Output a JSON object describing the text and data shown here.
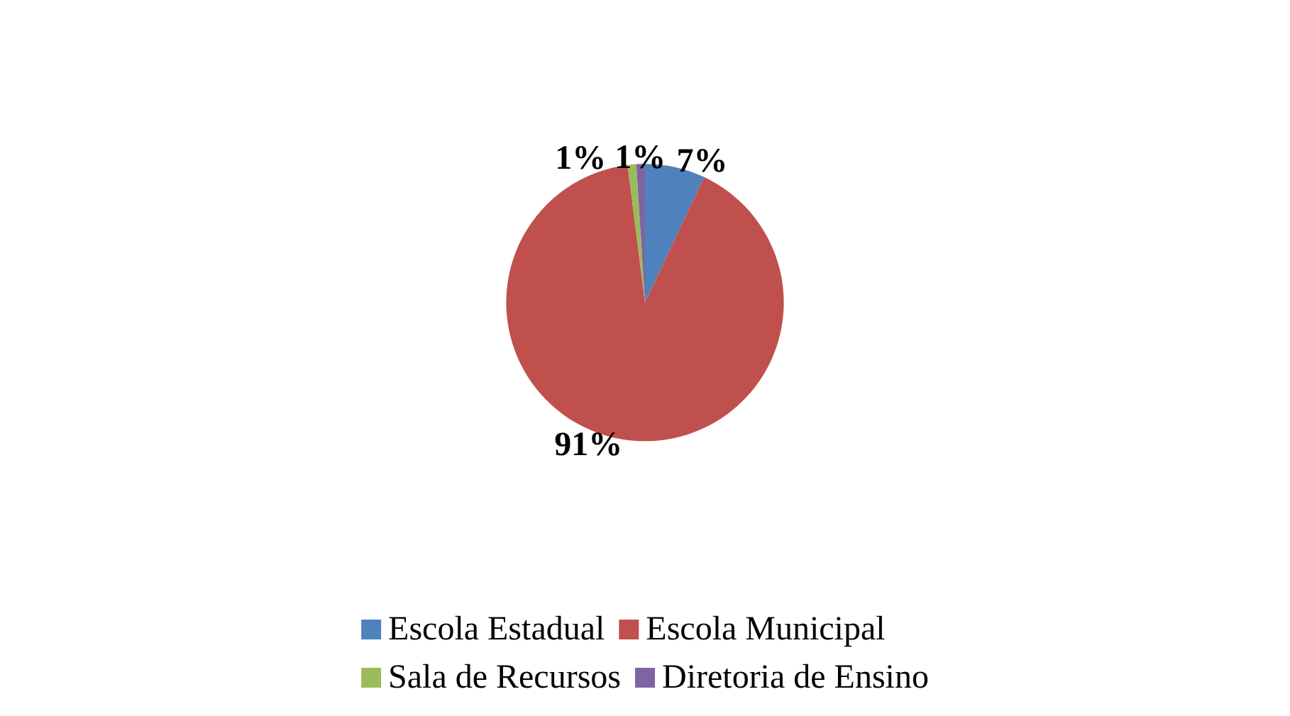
{
  "chart_data": {
    "type": "pie",
    "categories": [
      "Escola Estadual",
      "Escola Municipal",
      "Sala de Recursos",
      "Diretoria de Ensino"
    ],
    "values": [
      7,
      91,
      1,
      1
    ],
    "colors": [
      "#4f81bd",
      "#c0504d",
      "#9bbb59",
      "#8064a2"
    ],
    "value_labels": [
      "7%",
      "91%",
      "1%",
      "1%"
    ],
    "legend": "bottom"
  }
}
